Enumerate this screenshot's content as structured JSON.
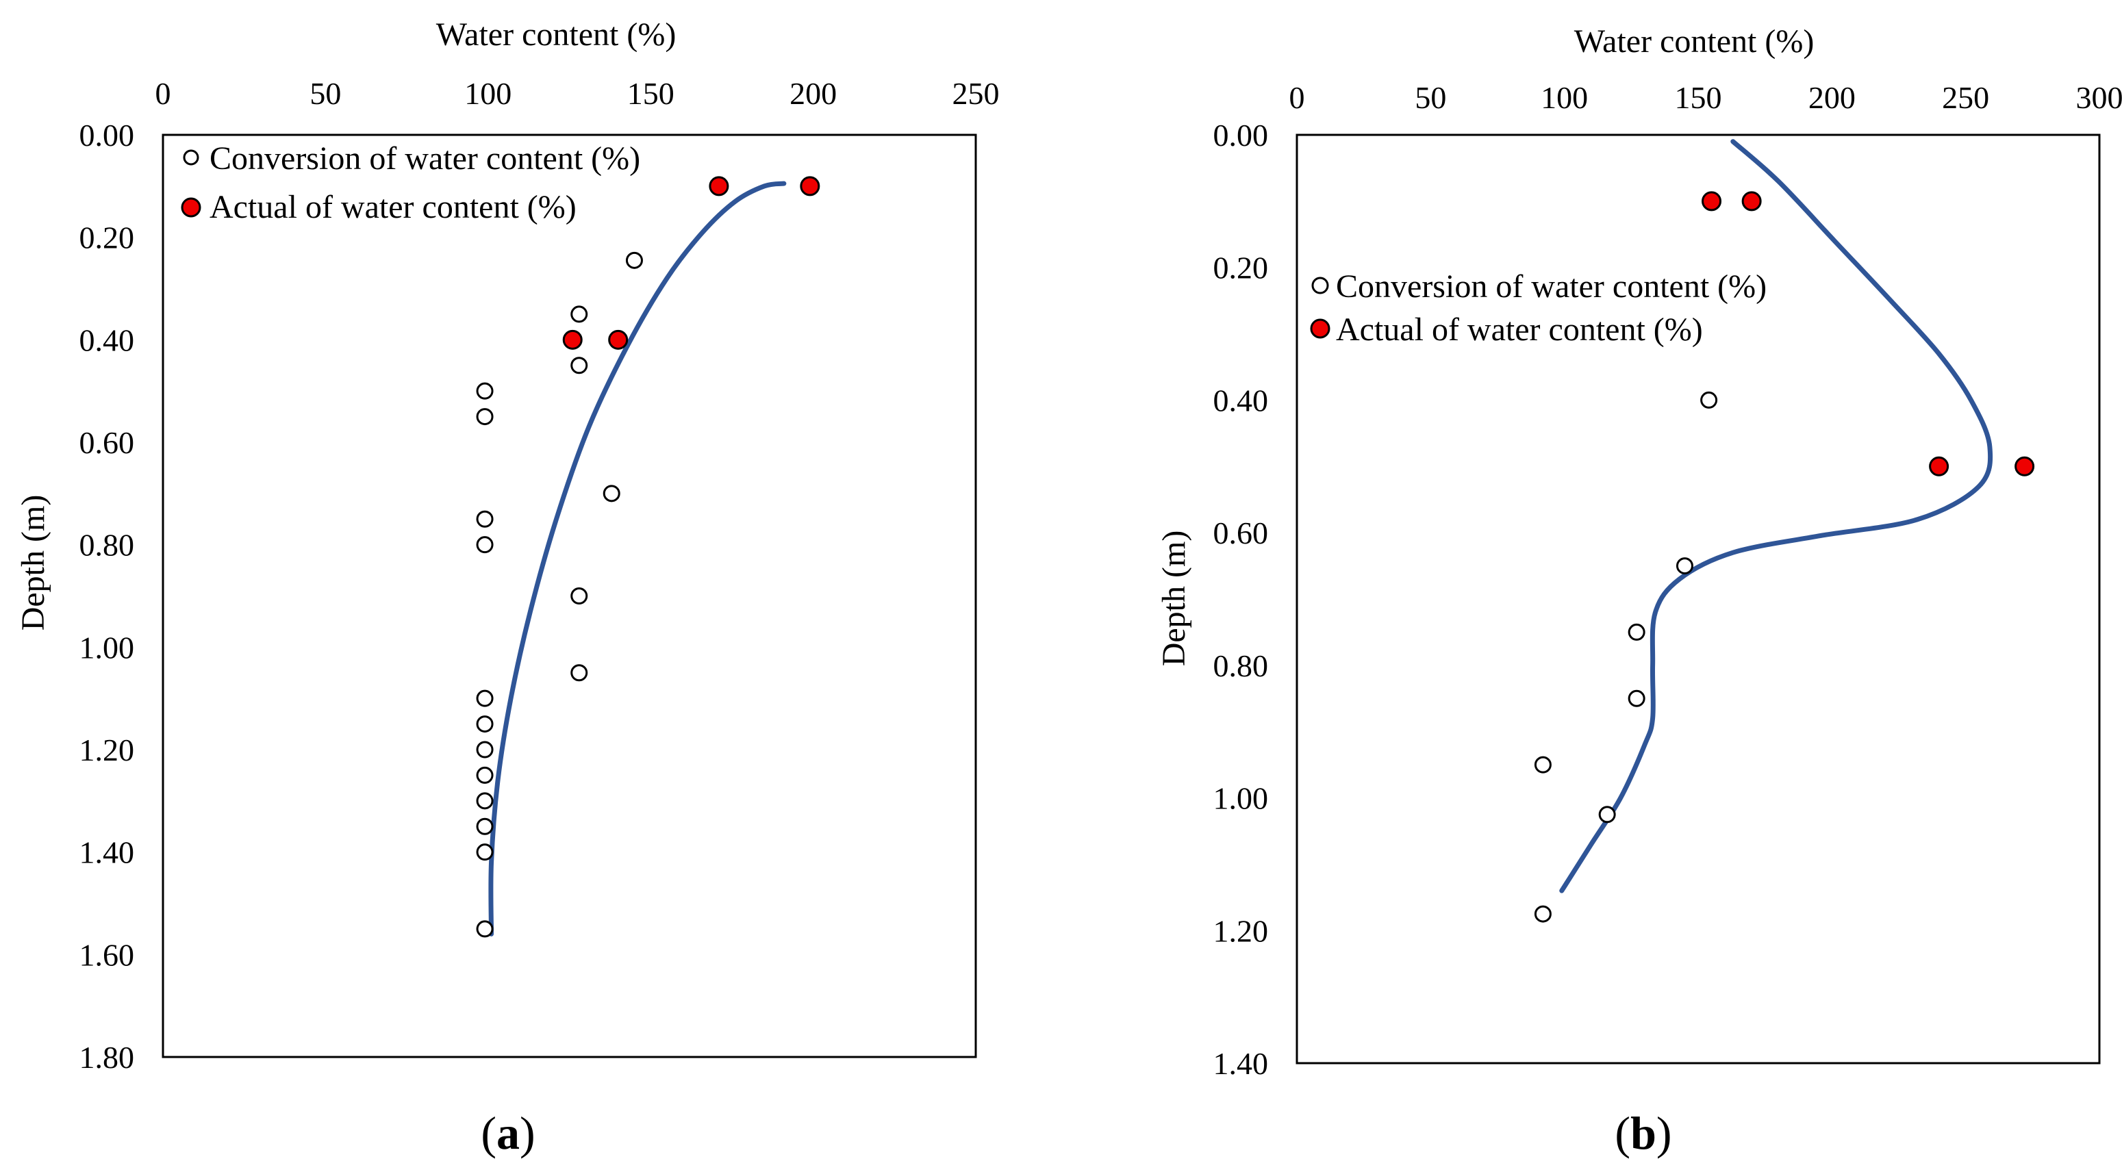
{
  "chart_data": [
    {
      "type": "scatter",
      "panel_label": "a",
      "xlabel": "Water content (%)",
      "ylabel": "Depth (m)",
      "xlim": [
        0,
        250
      ],
      "ylim": [
        0,
        1.8
      ],
      "x_axis_position": "top",
      "y_inverted": true,
      "x_ticks": [
        "0",
        "50",
        "100",
        "150",
        "200",
        "250"
      ],
      "y_ticks": [
        "0.00",
        "0.20",
        "0.40",
        "0.60",
        "0.80",
        "1.00",
        "1.20",
        "1.40",
        "1.60",
        "1.80"
      ],
      "legend_placement": "top-left",
      "series": [
        {
          "name": "Conversion of water content (%)",
          "marker": "open-circle",
          "points": [
            {
              "x": 145,
              "y": 0.245
            },
            {
              "x": 128,
              "y": 0.35
            },
            {
              "x": 128,
              "y": 0.45
            },
            {
              "x": 99,
              "y": 0.5
            },
            {
              "x": 99,
              "y": 0.55
            },
            {
              "x": 138,
              "y": 0.7
            },
            {
              "x": 99,
              "y": 0.75
            },
            {
              "x": 99,
              "y": 0.8
            },
            {
              "x": 128,
              "y": 0.9
            },
            {
              "x": 128,
              "y": 1.05
            },
            {
              "x": 99,
              "y": 1.1
            },
            {
              "x": 99,
              "y": 1.15
            },
            {
              "x": 99,
              "y": 1.2
            },
            {
              "x": 99,
              "y": 1.25
            },
            {
              "x": 99,
              "y": 1.3
            },
            {
              "x": 99,
              "y": 1.35
            },
            {
              "x": 99,
              "y": 1.4
            },
            {
              "x": 99,
              "y": 1.55
            }
          ]
        },
        {
          "name": "Actual of water content (%)",
          "marker": "filled-circle",
          "color": "#ee0000",
          "points": [
            {
              "x": 171,
              "y": 0.1
            },
            {
              "x": 199,
              "y": 0.1
            },
            {
              "x": 126,
              "y": 0.4
            },
            {
              "x": 140,
              "y": 0.4
            }
          ]
        }
      ],
      "trendline": {
        "color": "#2f5597",
        "points": [
          {
            "x": 191,
            "y": 0.095
          },
          {
            "x": 185,
            "y": 0.1
          },
          {
            "x": 176,
            "y": 0.13
          },
          {
            "x": 166,
            "y": 0.19
          },
          {
            "x": 155,
            "y": 0.28
          },
          {
            "x": 143,
            "y": 0.41
          },
          {
            "x": 131,
            "y": 0.57
          },
          {
            "x": 121,
            "y": 0.75
          },
          {
            "x": 113,
            "y": 0.93
          },
          {
            "x": 107,
            "y": 1.1
          },
          {
            "x": 103,
            "y": 1.26
          },
          {
            "x": 101,
            "y": 1.42
          },
          {
            "x": 101,
            "y": 1.56
          }
        ]
      }
    },
    {
      "type": "scatter",
      "panel_label": "b",
      "xlabel": "Water content (%)",
      "ylabel": "Depth (m)",
      "xlim": [
        0,
        300
      ],
      "ylim": [
        0,
        1.4
      ],
      "x_axis_position": "top",
      "y_inverted": true,
      "x_ticks": [
        "0",
        "50",
        "100",
        "150",
        "200",
        "250",
        "300"
      ],
      "y_ticks": [
        "0.00",
        "0.20",
        "0.40",
        "0.60",
        "0.80",
        "1.00",
        "1.20",
        "1.40"
      ],
      "legend_placement": "upper-left",
      "series": [
        {
          "name": "Conversion of water content (%)",
          "marker": "open-circle",
          "points": [
            {
              "x": 154,
              "y": 0.4
            },
            {
              "x": 145,
              "y": 0.65
            },
            {
              "x": 127,
              "y": 0.75
            },
            {
              "x": 127,
              "y": 0.85
            },
            {
              "x": 92,
              "y": 0.95
            },
            {
              "x": 116,
              "y": 1.025
            },
            {
              "x": 92,
              "y": 1.175
            }
          ]
        },
        {
          "name": "Actual of water content (%)",
          "marker": "filled-circle",
          "color": "#ee0000",
          "points": [
            {
              "x": 155,
              "y": 0.1
            },
            {
              "x": 170,
              "y": 0.1
            },
            {
              "x": 240,
              "y": 0.5
            },
            {
              "x": 272,
              "y": 0.5
            }
          ]
        }
      ],
      "trendline": {
        "color": "#2f5597",
        "points": [
          {
            "x": 163,
            "y": 0.01
          },
          {
            "x": 180,
            "y": 0.07
          },
          {
            "x": 201,
            "y": 0.16
          },
          {
            "x": 222,
            "y": 0.25
          },
          {
            "x": 240,
            "y": 0.33
          },
          {
            "x": 252,
            "y": 0.4
          },
          {
            "x": 259,
            "y": 0.47
          },
          {
            "x": 255,
            "y": 0.53
          },
          {
            "x": 232,
            "y": 0.58
          },
          {
            "x": 195,
            "y": 0.605
          },
          {
            "x": 163,
            "y": 0.63
          },
          {
            "x": 143,
            "y": 0.67
          },
          {
            "x": 134,
            "y": 0.72
          },
          {
            "x": 133,
            "y": 0.8
          },
          {
            "x": 133,
            "y": 0.88
          },
          {
            "x": 130,
            "y": 0.92
          },
          {
            "x": 121,
            "y": 1.0
          },
          {
            "x": 110,
            "y": 1.07
          },
          {
            "x": 99,
            "y": 1.14
          }
        ]
      }
    }
  ]
}
